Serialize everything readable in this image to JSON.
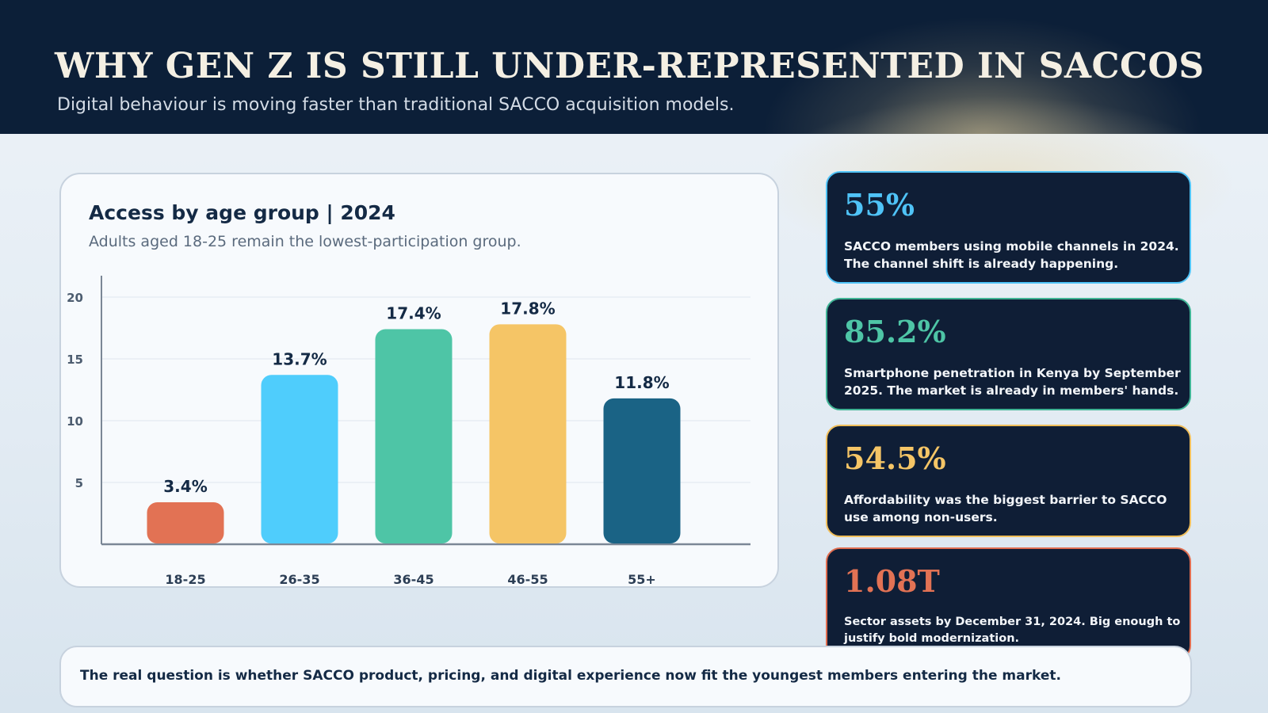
{
  "header": {
    "title": "WHY GEN Z IS STILL UNDER-REPRESENTED IN SACCOS",
    "subtitle": "Digital behaviour is moving faster than traditional SACCO acquisition models."
  },
  "chart_data": {
    "type": "bar",
    "title": "Access by age group | 2024",
    "subtitle": "Adults aged 18-25 remain the lowest-participation group.",
    "categories": [
      "18-25",
      "26-35",
      "36-45",
      "46-55",
      "55+"
    ],
    "values": [
      3.4,
      13.7,
      17.4,
      17.8,
      11.8
    ],
    "data_labels": [
      "3.4%",
      "13.7%",
      "17.4%",
      "17.8%",
      "11.8%"
    ],
    "colors": [
      "#e27254",
      "#4fcdfc",
      "#4ec5a6",
      "#f5c566",
      "#1a6385"
    ],
    "yticks": [
      5,
      10,
      15,
      20
    ],
    "ylim": [
      0,
      20
    ],
    "grid": true,
    "legend": "none",
    "xlabel": "",
    "ylabel": ""
  },
  "stats": [
    {
      "value": "55%",
      "color": "#4fc3f7",
      "border": "#4fc3f7",
      "description": "SACCO members using mobile channels in 2024. The channel shift is already happening."
    },
    {
      "value": "85.2%",
      "color": "#4ec5a6",
      "border": "#3fb394",
      "description": "Smartphone penetration in Kenya by September 2025. The market is already in members' hands."
    },
    {
      "value": "54.5%",
      "color": "#f5c566",
      "border": "#f0be5a",
      "description": "Affordability was the biggest barrier to SACCO use among non-users."
    },
    {
      "value": "1.08T",
      "color": "#e27254",
      "border": "#e06d50",
      "description": "Sector assets by December 31, 2024. Big enough to justify bold modernization."
    }
  ],
  "footer": {
    "text": "The real question is whether SACCO product, pricing, and digital experience now fit the youngest members entering the market."
  }
}
